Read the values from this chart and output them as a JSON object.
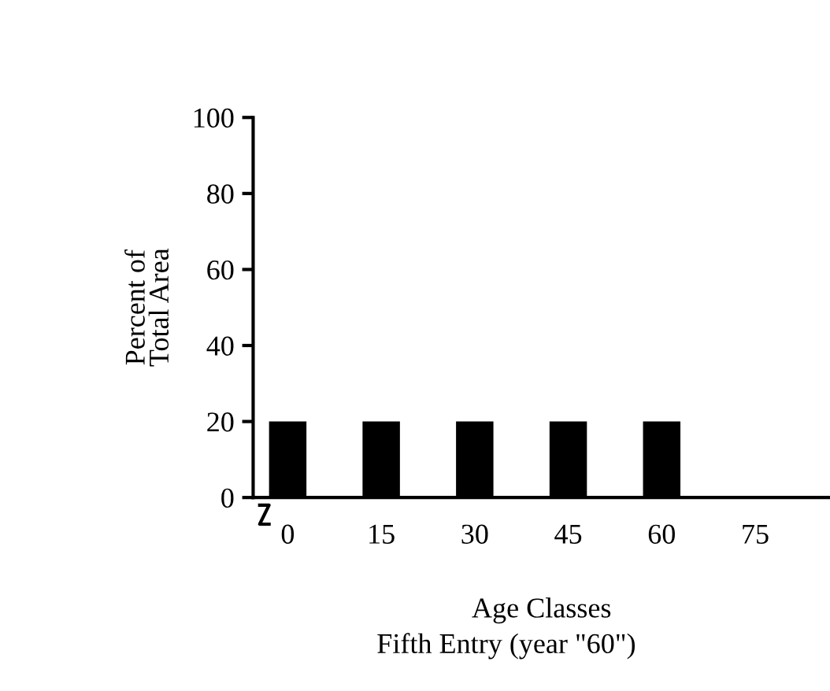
{
  "chart_data": {
    "type": "bar",
    "categories": [
      "0",
      "15",
      "30",
      "45",
      "60",
      "75"
    ],
    "values": [
      20,
      20,
      20,
      20,
      20,
      0
    ],
    "color": "#000000",
    "ylabel": "Percent of\nTotal Area",
    "xlabel": "Age Classes",
    "annotations": [
      "Fifth Entry (year \"60\")"
    ],
    "ylim": [
      0,
      100
    ],
    "yticks": [
      0,
      20,
      40,
      60,
      80,
      100
    ],
    "grid": false
  }
}
